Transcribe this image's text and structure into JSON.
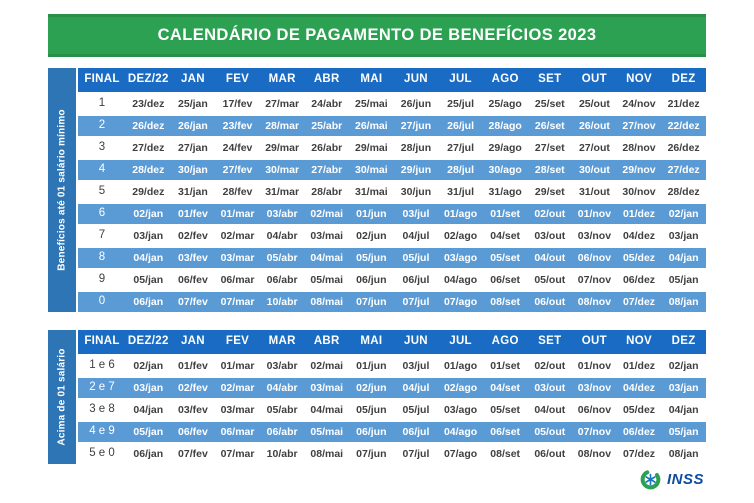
{
  "title": "CALENDÁRIO DE PAGAMENTO DE BENEFÍCIOS 2023",
  "columns": [
    "FINAL",
    "DEZ/22",
    "JAN",
    "FEV",
    "MAR",
    "ABR",
    "MAI",
    "JUN",
    "JUL",
    "AGO",
    "SET",
    "OUT",
    "NOV",
    "DEZ"
  ],
  "tables": [
    {
      "side_label": "Benefícios até 01 salário mínimo",
      "rows": [
        {
          "final": "1",
          "dates": [
            "23/dez",
            "25/jan",
            "17/fev",
            "27/mar",
            "24/abr",
            "25/mai",
            "26/jun",
            "25/jul",
            "25/ago",
            "25/set",
            "25/out",
            "24/nov",
            "21/dez"
          ]
        },
        {
          "final": "2",
          "dates": [
            "26/dez",
            "26/jan",
            "23/fev",
            "28/mar",
            "25/abr",
            "26/mai",
            "27/jun",
            "26/jul",
            "28/ago",
            "26/set",
            "26/out",
            "27/nov",
            "22/dez"
          ]
        },
        {
          "final": "3",
          "dates": [
            "27/dez",
            "27/jan",
            "24/fev",
            "29/mar",
            "26/abr",
            "29/mai",
            "28/jun",
            "27/jul",
            "29/ago",
            "27/set",
            "27/out",
            "28/nov",
            "26/dez"
          ]
        },
        {
          "final": "4",
          "dates": [
            "28/dez",
            "30/jan",
            "27/fev",
            "30/mar",
            "27/abr",
            "30/mai",
            "29/jun",
            "28/jul",
            "30/ago",
            "28/set",
            "30/out",
            "29/nov",
            "27/dez"
          ]
        },
        {
          "final": "5",
          "dates": [
            "29/dez",
            "31/jan",
            "28/fev",
            "31/mar",
            "28/abr",
            "31/mai",
            "30/jun",
            "31/jul",
            "31/ago",
            "29/set",
            "31/out",
            "30/nov",
            "28/dez"
          ]
        },
        {
          "final": "6",
          "dates": [
            "02/jan",
            "01/fev",
            "01/mar",
            "03/abr",
            "02/mai",
            "01/jun",
            "03/jul",
            "01/ago",
            "01/set",
            "02/out",
            "01/nov",
            "01/dez",
            "02/jan"
          ]
        },
        {
          "final": "7",
          "dates": [
            "03/jan",
            "02/fev",
            "02/mar",
            "04/abr",
            "03/mai",
            "02/jun",
            "04/jul",
            "02/ago",
            "04/set",
            "03/out",
            "03/nov",
            "04/dez",
            "03/jan"
          ]
        },
        {
          "final": "8",
          "dates": [
            "04/jan",
            "03/fev",
            "03/mar",
            "05/abr",
            "04/mai",
            "05/jun",
            "05/jul",
            "03/ago",
            "05/set",
            "04/out",
            "06/nov",
            "05/dez",
            "04/jan"
          ]
        },
        {
          "final": "9",
          "dates": [
            "05/jan",
            "06/fev",
            "06/mar",
            "06/abr",
            "05/mai",
            "06/jun",
            "06/jul",
            "04/ago",
            "06/set",
            "05/out",
            "07/nov",
            "06/dez",
            "05/jan"
          ]
        },
        {
          "final": "0",
          "dates": [
            "06/jan",
            "07/fev",
            "07/mar",
            "10/abr",
            "08/mai",
            "07/jun",
            "07/jul",
            "07/ago",
            "08/set",
            "06/out",
            "08/nov",
            "07/dez",
            "08/jan"
          ]
        }
      ]
    },
    {
      "side_label": "Acima de 01 salário",
      "rows": [
        {
          "final": "1 e 6",
          "dates": [
            "02/jan",
            "01/fev",
            "01/mar",
            "03/abr",
            "02/mai",
            "01/jun",
            "03/jul",
            "01/ago",
            "01/set",
            "02/out",
            "01/nov",
            "01/dez",
            "02/jan"
          ]
        },
        {
          "final": "2 e 7",
          "dates": [
            "03/jan",
            "02/fev",
            "02/mar",
            "04/abr",
            "03/mai",
            "02/jun",
            "04/jul",
            "02/ago",
            "04/set",
            "03/out",
            "03/nov",
            "04/dez",
            "03/jan"
          ]
        },
        {
          "final": "3 e 8",
          "dates": [
            "04/jan",
            "03/fev",
            "03/mar",
            "05/abr",
            "04/mai",
            "05/jun",
            "05/jul",
            "03/ago",
            "05/set",
            "04/out",
            "06/nov",
            "05/dez",
            "04/jan"
          ]
        },
        {
          "final": "4 e 9",
          "dates": [
            "05/jan",
            "06/fev",
            "06/mar",
            "06/abr",
            "05/mai",
            "06/jun",
            "06/jul",
            "04/ago",
            "06/set",
            "05/out",
            "07/nov",
            "06/dez",
            "05/jan"
          ]
        },
        {
          "final": "5 e 0",
          "dates": [
            "06/jan",
            "07/fev",
            "07/mar",
            "10/abr",
            "08/mai",
            "07/jun",
            "07/jul",
            "07/ago",
            "08/set",
            "06/out",
            "08/nov",
            "07/dez",
            "08/jan"
          ]
        }
      ]
    }
  ],
  "footer": {
    "logo_text": "INSS"
  },
  "colors": {
    "banner_green": "#2DA152",
    "header_blue": "#1A6BC3",
    "sidebar_blue": "#2E75B6",
    "stripe_blue": "#5B9BD5",
    "dark_text": "#3F4042",
    "logo_navy": "#0C4DA2"
  }
}
